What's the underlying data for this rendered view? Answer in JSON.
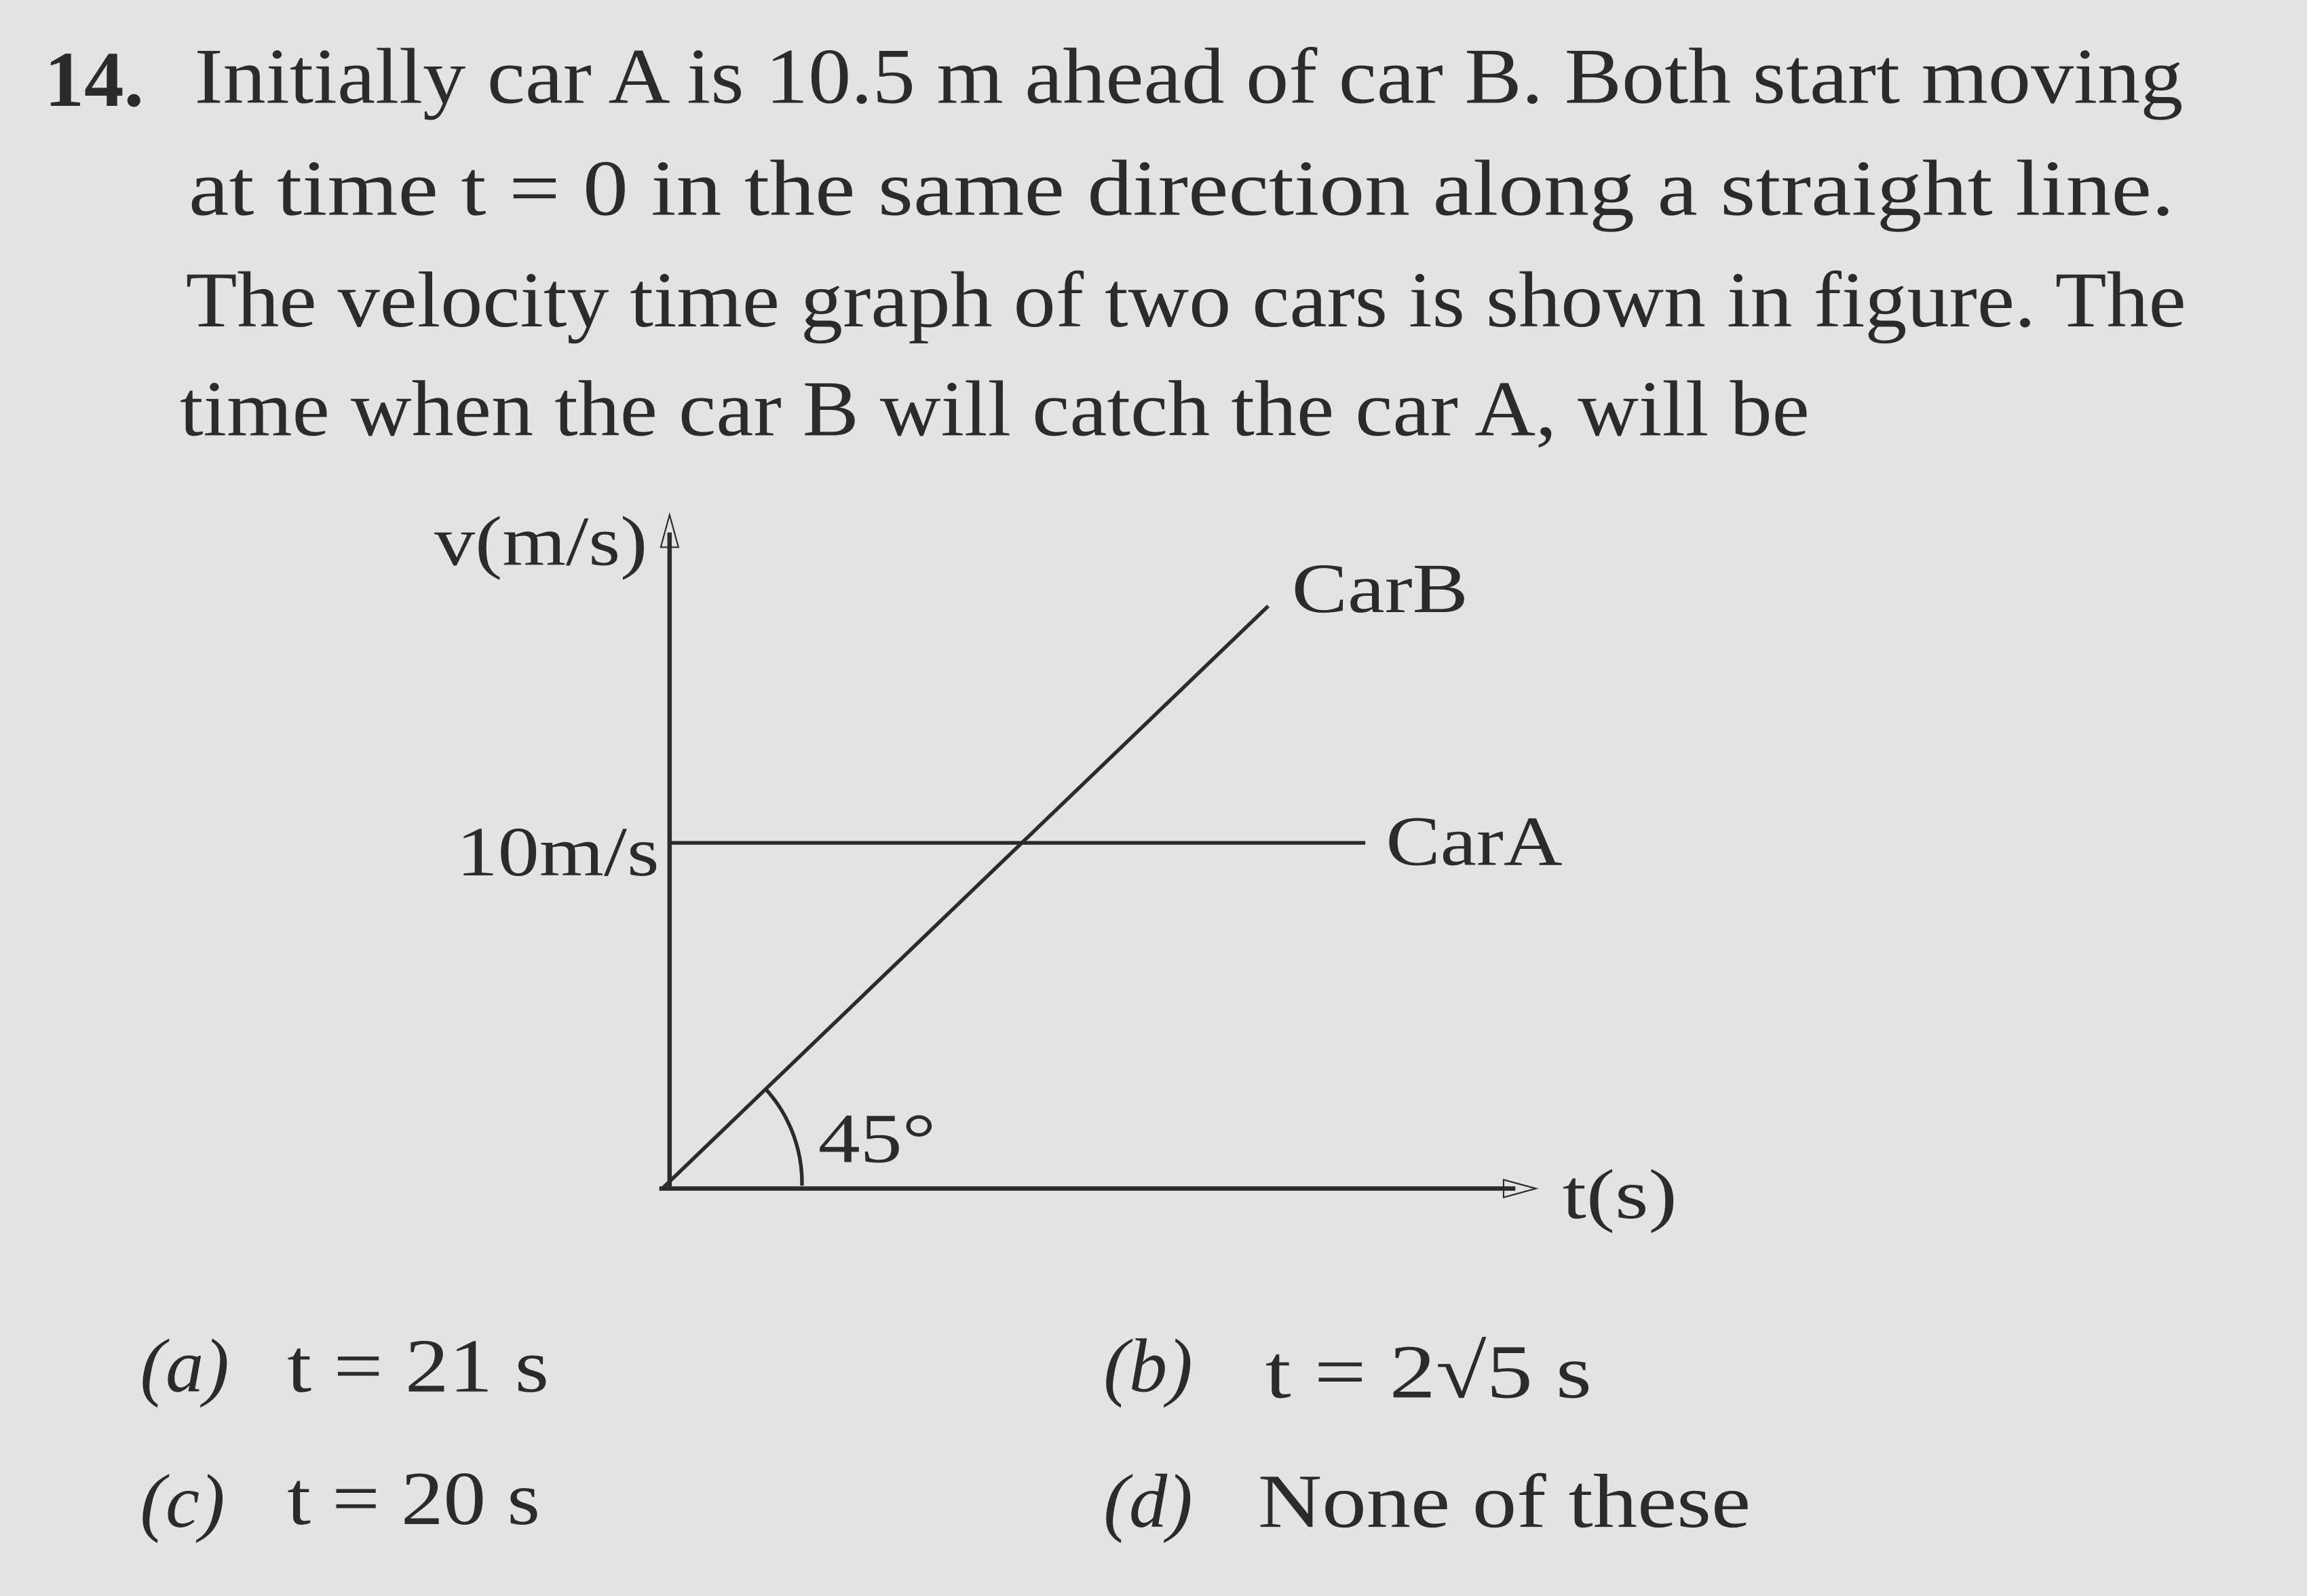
{
  "question": {
    "number": "14.",
    "lines": [
      "Initially car A is 10.5 m ahead of car B. Both start moving",
      "at time t = 0 in the same direction along a straight line.",
      "The velocity time graph of two cars is shown in figure. The",
      "time when the car B will catch the car A, will be"
    ]
  },
  "figure": {
    "y_axis_label": "v(m/s)",
    "x_axis_label": "t(s)",
    "y_value_label": "10m/s",
    "car_a_label": "CarA",
    "car_b_label": "CarB",
    "angle_label": "45°"
  },
  "options": [
    {
      "label": "(a)",
      "text": "t = 21 s"
    },
    {
      "label": "(b)",
      "text": "t = 2√5 s"
    },
    {
      "label": "(c)",
      "text": "t = 20 s"
    },
    {
      "label": "(d)",
      "text": "None of these"
    }
  ]
}
